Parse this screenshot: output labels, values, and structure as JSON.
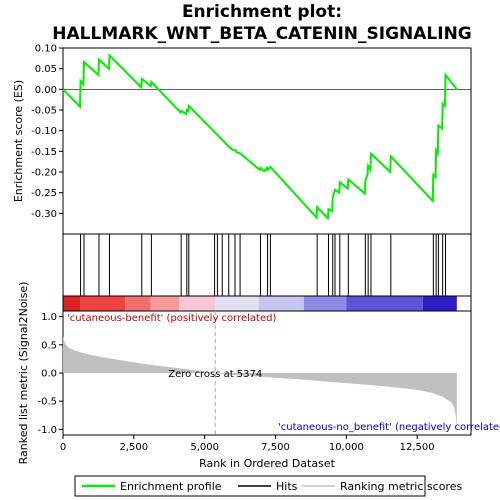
{
  "chart_data": {
    "type": "line",
    "title": "Enrichment plot: HALLMARK_WNT_BETA_CATENIN_SIGNALING",
    "title_lines": [
      "Enrichment plot:",
      "HALLMARK_WNT_BETA_CATENIN_SIGNALING"
    ],
    "es_panel": {
      "ylabel": "Enrichment score (ES)",
      "ylim": [
        -0.35,
        0.1
      ],
      "yticks": [
        "0.10",
        "0.05",
        "0.00",
        "-0.05",
        "-0.10",
        "-0.15",
        "-0.20",
        "-0.25",
        "-0.30"
      ],
      "ytick_values": [
        0.1,
        0.05,
        0.0,
        -0.05,
        -0.1,
        -0.15,
        -0.2,
        -0.25,
        -0.3
      ],
      "grid": false,
      "line_color": "#00ee00",
      "points": [
        [
          0,
          0.0
        ],
        [
          600,
          -0.042
        ],
        [
          620,
          0.02
        ],
        [
          720,
          0.012
        ],
        [
          740,
          0.066
        ],
        [
          1250,
          0.035
        ],
        [
          1270,
          0.072
        ],
        [
          1620,
          0.05
        ],
        [
          1640,
          0.082
        ],
        [
          2760,
          0.005
        ],
        [
          2780,
          0.025
        ],
        [
          3100,
          0.008
        ],
        [
          3120,
          0.018
        ],
        [
          4150,
          -0.056
        ],
        [
          4170,
          -0.052
        ],
        [
          4350,
          -0.06
        ],
        [
          4370,
          -0.05
        ],
        [
          4420,
          -0.053
        ],
        [
          4440,
          -0.04
        ],
        [
          5950,
          -0.145
        ],
        [
          6100,
          -0.148
        ],
        [
          6120,
          -0.152
        ],
        [
          6250,
          -0.155
        ],
        [
          6950,
          -0.195
        ],
        [
          6970,
          -0.19
        ],
        [
          7100,
          -0.198
        ],
        [
          7200,
          -0.19
        ],
        [
          7220,
          -0.195
        ],
        [
          7320,
          -0.188
        ],
        [
          8950,
          -0.31
        ],
        [
          8970,
          -0.285
        ],
        [
          9350,
          -0.312
        ],
        [
          9370,
          -0.29
        ],
        [
          9500,
          -0.295
        ],
        [
          9520,
          -0.262
        ],
        [
          9600,
          -0.243
        ],
        [
          9750,
          -0.25
        ],
        [
          9770,
          -0.225
        ],
        [
          10050,
          -0.24
        ],
        [
          10070,
          -0.218
        ],
        [
          10650,
          -0.252
        ],
        [
          10670,
          -0.222
        ],
        [
          10750,
          -0.205
        ],
        [
          10770,
          -0.185
        ],
        [
          10850,
          -0.195
        ],
        [
          10870,
          -0.156
        ],
        [
          11550,
          -0.2
        ],
        [
          11570,
          -0.162
        ],
        [
          13050,
          -0.27
        ],
        [
          13070,
          -0.207
        ],
        [
          13150,
          -0.212
        ],
        [
          13170,
          -0.148
        ],
        [
          13230,
          -0.155
        ],
        [
          13250,
          -0.088
        ],
        [
          13380,
          -0.095
        ],
        [
          13400,
          -0.035
        ],
        [
          13480,
          -0.04
        ],
        [
          13500,
          0.035
        ],
        [
          13900,
          0.0
        ]
      ]
    },
    "hits": [
      620,
      740,
      1270,
      1640,
      2780,
      3120,
      4170,
      4370,
      4440,
      5350,
      5450,
      5620,
      5850,
      6070,
      6250,
      6970,
      7220,
      7320,
      8970,
      9370,
      9520,
      9600,
      9770,
      10070,
      10670,
      10770,
      10870,
      11570,
      13070,
      13170,
      13250,
      13400,
      13500
    ],
    "rank_panel": {
      "ylabel": "Ranked list metric (Signal2Noise)",
      "ylim": [
        -1.1,
        1.1
      ],
      "yticks": [
        "1.0",
        "0.5",
        "0.0",
        "-0.5",
        "-1.0"
      ],
      "ytick_values": [
        1.0,
        0.5,
        0.0,
        -0.5,
        -1.0
      ],
      "xlabel": "Rank in Ordered Dataset",
      "xlim": [
        0,
        14400
      ],
      "xticks": [
        "0",
        "2,500",
        "5,000",
        "7,500",
        "10,000",
        "12,500"
      ],
      "xtick_values": [
        0,
        2500,
        5000,
        7500,
        10000,
        12500
      ],
      "zero_cross": 5374,
      "zero_cross_label": "Zero cross at 5374",
      "positive_label": "'cutaneous-benefit' (positively correlated)",
      "negative_label": "'cutaneous-no_benefit' (negatively correlated)",
      "fill_color": "#c0c0c0",
      "metric_curve": [
        [
          0,
          0.65
        ],
        [
          50,
          0.55
        ],
        [
          150,
          0.47
        ],
        [
          300,
          0.42
        ],
        [
          600,
          0.37
        ],
        [
          1000,
          0.32
        ],
        [
          1500,
          0.27
        ],
        [
          2000,
          0.23
        ],
        [
          2500,
          0.19
        ],
        [
          3000,
          0.15
        ],
        [
          3500,
          0.12
        ],
        [
          4000,
          0.09
        ],
        [
          4500,
          0.06
        ],
        [
          5000,
          0.02
        ],
        [
          5374,
          0.0
        ],
        [
          6000,
          -0.03
        ],
        [
          7000,
          -0.07
        ],
        [
          8000,
          -0.1
        ],
        [
          9000,
          -0.14
        ],
        [
          10000,
          -0.18
        ],
        [
          11000,
          -0.22
        ],
        [
          12000,
          -0.27
        ],
        [
          12500,
          -0.3
        ],
        [
          13000,
          -0.35
        ],
        [
          13400,
          -0.42
        ],
        [
          13700,
          -0.52
        ],
        [
          13800,
          -0.6
        ],
        [
          13860,
          -0.75
        ],
        [
          13900,
          -1.0
        ]
      ]
    },
    "colorbar": [
      {
        "x0": 0,
        "x1": 600,
        "color": "#dd2222"
      },
      {
        "x0": 600,
        "x1": 2200,
        "color": "#ee4444"
      },
      {
        "x0": 2200,
        "x1": 3100,
        "color": "#f26f6f"
      },
      {
        "x0": 3100,
        "x1": 4100,
        "color": "#f89999"
      },
      {
        "x0": 4100,
        "x1": 5374,
        "color": "#fbc6d6"
      },
      {
        "x0": 5374,
        "x1": 6900,
        "color": "#e4e0f4"
      },
      {
        "x0": 6900,
        "x1": 8500,
        "color": "#c8c4f0"
      },
      {
        "x0": 8500,
        "x1": 10000,
        "color": "#8f8ae6"
      },
      {
        "x0": 10000,
        "x1": 12700,
        "color": "#5d55d8"
      },
      {
        "x0": 12700,
        "x1": 13900,
        "color": "#2a1ec0"
      }
    ],
    "legend": {
      "placement": "bottom",
      "entries": [
        {
          "label": "Enrichment profile",
          "color": "#00ee00",
          "style": "line"
        },
        {
          "label": "Hits",
          "color": "#000000",
          "style": "line"
        },
        {
          "label": "Ranking metric scores",
          "color": "#c0c0c0",
          "style": "line"
        }
      ]
    }
  }
}
